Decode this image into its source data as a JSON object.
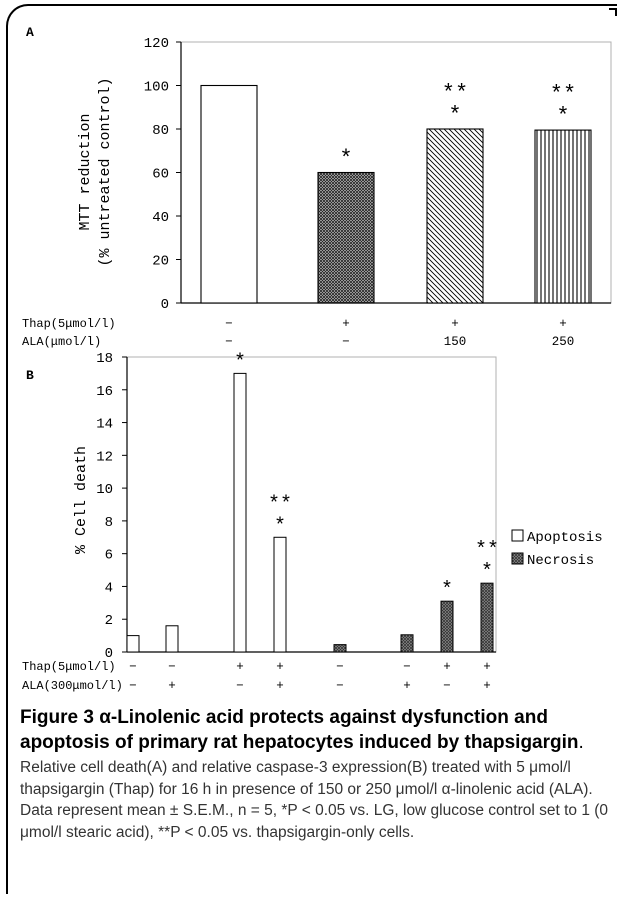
{
  "chart_data": [
    {
      "panel_label": "A",
      "type": "bar",
      "ylabel_lines": [
        "MTT reduction",
        "(% untreated control)"
      ],
      "ylim": [
        0,
        120
      ],
      "yticks": [
        0,
        20,
        40,
        60,
        80,
        100,
        120
      ],
      "values": [
        100,
        60,
        80,
        79.5
      ],
      "fills": [
        "white",
        "crosshatch",
        "diagonal",
        "vertical"
      ],
      "significance": [
        [],
        [
          "*"
        ],
        [
          "**",
          "*"
        ],
        [
          "**",
          "*"
        ]
      ],
      "condition_rows": [
        {
          "label": "Thap(5μmol/l)",
          "values": [
            "−",
            "+",
            "+",
            "+"
          ]
        },
        {
          "label": "ALA(μmol/l)",
          "values": [
            "−",
            "−",
            "150",
            "250"
          ]
        }
      ]
    },
    {
      "panel_label": "B",
      "type": "bar",
      "ylabel": "% Cell death",
      "ylim": [
        0,
        18
      ],
      "yticks": [
        0,
        2,
        4,
        6,
        8,
        10,
        12,
        14,
        16,
        18
      ],
      "legend_position": "right",
      "series": [
        {
          "name": "Apoptosis",
          "color": "#ffffff",
          "values": [
            1.0,
            1.6,
            17.0,
            7.0
          ],
          "significance": [
            [],
            [],
            [
              "*"
            ],
            [
              "**",
              "*"
            ]
          ]
        },
        {
          "name": "Necrosis",
          "color": "#7a7a7a",
          "values": [
            0.45,
            1.05,
            3.1,
            4.2
          ],
          "significance": [
            [],
            [],
            [
              "*"
            ],
            [
              "**",
              "*"
            ]
          ]
        }
      ],
      "condition_rows": [
        {
          "label": "Thap(5μmol/l)",
          "values": [
            "−",
            "−",
            "+",
            "+",
            "−",
            "−",
            "+",
            "+"
          ]
        },
        {
          "label": "ALA(300μmol/l)",
          "values": [
            "−",
            "+",
            "−",
            "+",
            "−",
            "+",
            "−",
            "+"
          ]
        }
      ]
    }
  ],
  "caption": {
    "figure_label": "Figure 3",
    "title": "α-Linolenic acid protects against dysfunction and apoptosis of primary rat hepatocytes induced by thapsigargin",
    "title_end": ".",
    "body": "Relative cell death(A) and relative caspase-3 expression(B) treated with 5 μmol/l thapsigargin (Thap) for 16 h in presence of 150 or 250 μmol/l α-linolenic acid (ALA). Data represent mean ± S.E.M., n = 5, *P < 0.05 vs. LG, low glucose control set to 1 (0 μmol/l stearic acid), **P < 0.05 vs. thapsigargin-only cells."
  }
}
